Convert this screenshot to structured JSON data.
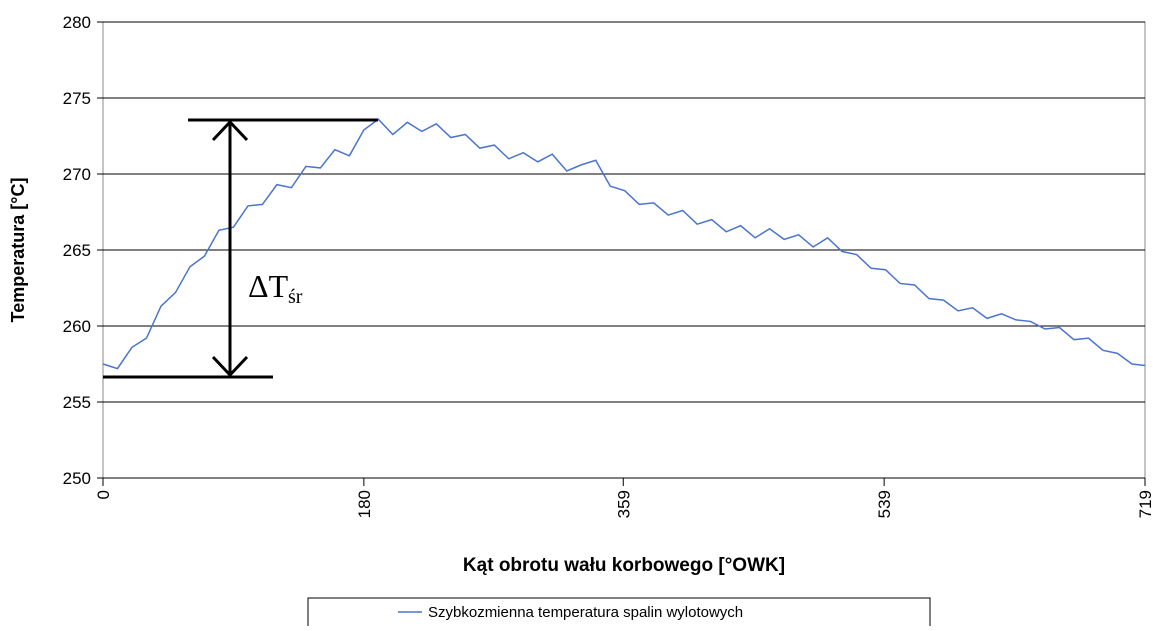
{
  "chart_data": {
    "type": "line",
    "ylabel": "Temperatura [°C]",
    "xlabel": "Kąt obrotu wału korbowego [°OWK]",
    "annotation": {
      "main": "ΔT",
      "sub": "śr"
    },
    "x": [
      0,
      10,
      20,
      30,
      40,
      50,
      60,
      70,
      80,
      90,
      100,
      110,
      120,
      130,
      140,
      150,
      160,
      170,
      180,
      190,
      200,
      210,
      220,
      230,
      240,
      250,
      260,
      270,
      280,
      290,
      300,
      310,
      320,
      330,
      340,
      350,
      360,
      370,
      380,
      390,
      400,
      410,
      420,
      430,
      440,
      450,
      460,
      470,
      480,
      490,
      500,
      510,
      520,
      530,
      540,
      550,
      560,
      570,
      580,
      590,
      600,
      610,
      620,
      630,
      640,
      650,
      660,
      670,
      680,
      690,
      700,
      710,
      719
    ],
    "series": [
      {
        "name": "Szybkozmienna temperatura spalin wylotowych",
        "color": "#4a74d0",
        "values": [
          257.5,
          257.2,
          258.6,
          259.2,
          261.3,
          262.2,
          263.9,
          264.6,
          266.3,
          266.5,
          267.9,
          268.0,
          269.3,
          269.1,
          270.5,
          270.4,
          271.6,
          271.2,
          272.9,
          273.6,
          272.6,
          273.4,
          272.8,
          273.3,
          272.4,
          272.6,
          271.7,
          271.9,
          271.0,
          271.4,
          270.8,
          271.3,
          270.2,
          270.6,
          270.9,
          269.2,
          268.9,
          268.0,
          268.1,
          267.3,
          267.6,
          266.7,
          267.0,
          266.2,
          266.6,
          265.8,
          266.4,
          265.7,
          266.0,
          265.2,
          265.8,
          264.9,
          264.7,
          263.8,
          263.7,
          262.8,
          262.7,
          261.8,
          261.7,
          261.0,
          261.2,
          260.5,
          260.8,
          260.4,
          260.3,
          259.8,
          259.9,
          259.1,
          259.2,
          258.4,
          258.2,
          257.5,
          257.4
        ]
      }
    ],
    "xlim": [
      0,
      719
    ],
    "ylim": [
      250,
      280
    ],
    "xticks": [
      0,
      180,
      359,
      539,
      719
    ],
    "yticks": [
      250,
      255,
      260,
      265,
      270,
      275,
      280
    ],
    "grid": true
  }
}
